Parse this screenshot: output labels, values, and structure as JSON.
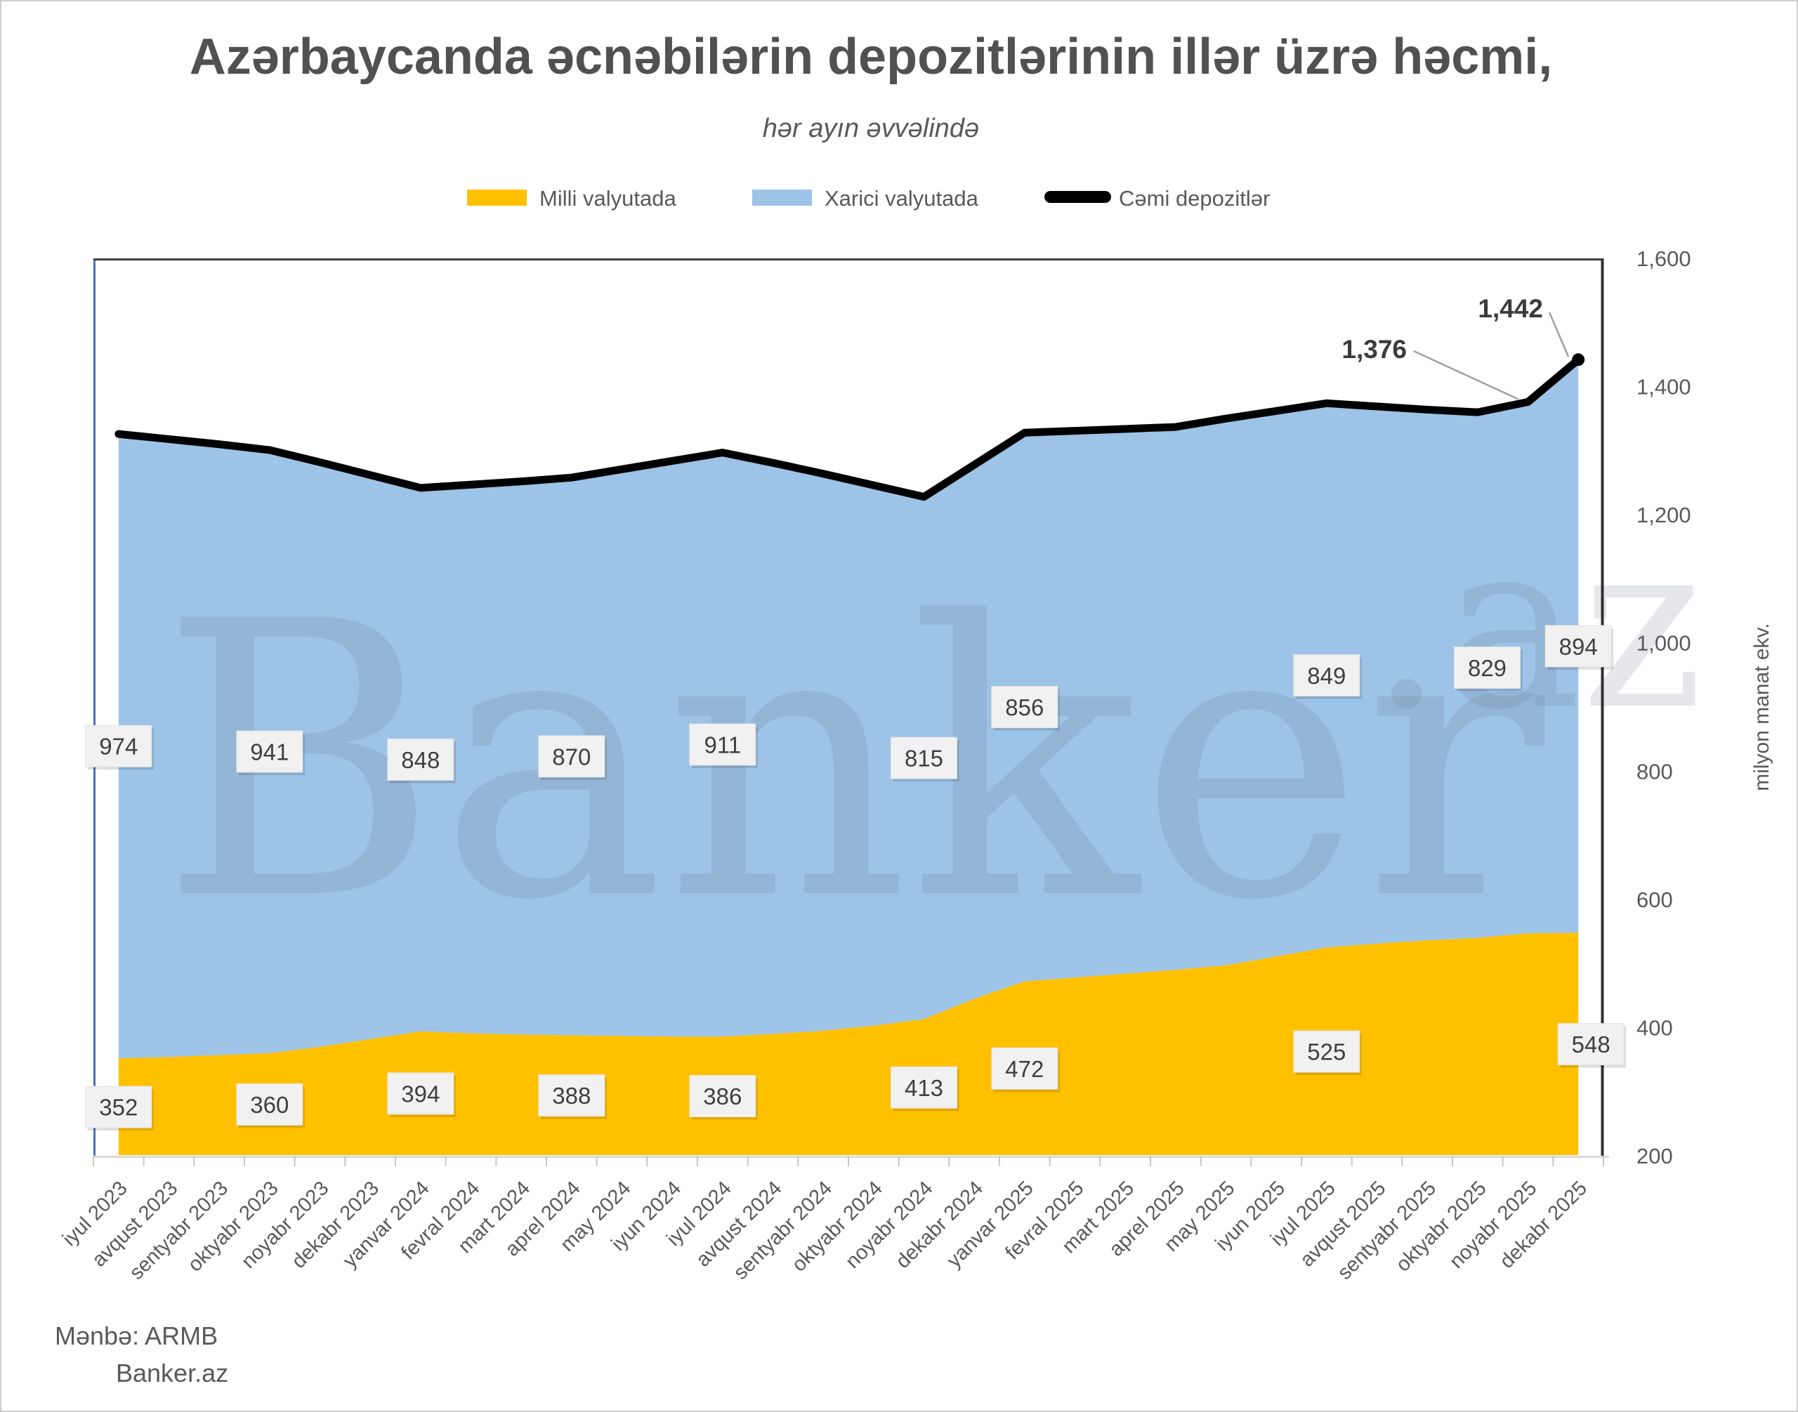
{
  "title": "Azərbaycanda əcnəbilərin depozitlərinin illər üzrə həcmi,",
  "subtitle": "hər ayın əvvəlində",
  "legend": [
    {
      "label": "Milli valyutada",
      "color": "#FFC000",
      "type": "area"
    },
    {
      "label": "Xarici valyutada",
      "color": "#9DC3E6",
      "type": "area"
    },
    {
      "label": "Cəmi depozitlər",
      "color": "#000000",
      "type": "line"
    }
  ],
  "watermark": {
    "main": "Banker",
    "suffix": ".az"
  },
  "source": {
    "line1": "Mənbə: ARMB",
    "line2": "Banker.az"
  },
  "y_axis": {
    "title": "milyon manat ekv.",
    "min": 200,
    "max": 1600,
    "step": 200,
    "tick_labels": [
      "200",
      "400",
      "600",
      "800",
      "1,000",
      "1,200",
      "1,400",
      "1,600"
    ]
  },
  "chart_data": {
    "type": "area",
    "stacked": true,
    "grid": false,
    "legend_position": "top",
    "ylim": [
      200,
      1600
    ],
    "ylabel": "milyon manat ekv.",
    "categories": [
      "iyul 2023",
      "avqust 2023",
      "sentyabr 2023",
      "oktyabr 2023",
      "noyabr 2023",
      "dekabr 2023",
      "yanvar 2024",
      "fevral 2024",
      "mart 2024",
      "aprel 2024",
      "may 2024",
      "iyun 2024",
      "iyul 2024",
      "avqust 2024",
      "sentyabr 2024",
      "oktyabr 2024",
      "noyabr 2024",
      "dekabr 2024",
      "yanvar 2025",
      "fevral 2025",
      "mart 2025",
      "aprel 2025",
      "may 2025",
      "iyun 2025",
      "iyul 2025",
      "avqust 2025",
      "sentyabr 2025",
      "oktyabr 2025",
      "noyabr 2025",
      "dekabr 2025"
    ],
    "series": [
      {
        "name": "Milli valyutada",
        "color": "#FFC000",
        "kind": "area",
        "values": [
          352,
          354,
          357,
          360,
          370,
          382,
          394,
          391,
          389,
          388,
          387,
          386,
          386,
          390,
          395,
          403,
          413,
          445,
          472,
          478,
          484,
          490,
          497,
          511,
          525,
          531,
          536,
          540,
          547,
          548
        ]
      },
      {
        "name": "Xarici valyutada",
        "color": "#9DC3E6",
        "kind": "area",
        "values": [
          974,
          964,
          953,
          941,
          912,
          880,
          848,
          856,
          863,
          870,
          884,
          898,
          911,
          891,
          869,
          843,
          815,
          833,
          856,
          853,
          850,
          847,
          853,
          851,
          849,
          838,
          828,
          820,
          829,
          894
        ]
      },
      {
        "name": "Cəmi depozitlər",
        "color": "#000000",
        "kind": "line",
        "values": [
          1326,
          1318,
          1310,
          1301,
          1282,
          1262,
          1242,
          1247,
          1252,
          1258,
          1271,
          1284,
          1297,
          1281,
          1264,
          1246,
          1228,
          1278,
          1328,
          1331,
          1334,
          1337,
          1350,
          1362,
          1374,
          1369,
          1364,
          1360,
          1376,
          1442
        ]
      }
    ],
    "data_labels": {
      "milli": [
        {
          "i": 0,
          "text": "352"
        },
        {
          "i": 3,
          "text": "360"
        },
        {
          "i": 6,
          "text": "394"
        },
        {
          "i": 9,
          "text": "388"
        },
        {
          "i": 12,
          "text": "386"
        },
        {
          "i": 16,
          "text": "413"
        },
        {
          "i": 18,
          "text": "472"
        },
        {
          "i": 24,
          "text": "525"
        },
        {
          "i": 29,
          "text": "548",
          "dx": 18
        }
      ],
      "xarici": [
        {
          "i": 0,
          "text": "974"
        },
        {
          "i": 3,
          "text": "941"
        },
        {
          "i": 6,
          "text": "848"
        },
        {
          "i": 9,
          "text": "870"
        },
        {
          "i": 12,
          "text": "911"
        },
        {
          "i": 16,
          "text": "815"
        },
        {
          "i": 18,
          "text": "856"
        },
        {
          "i": 24,
          "text": "849"
        },
        {
          "i": 28,
          "text": "829",
          "dx": -58
        },
        {
          "i": 29,
          "text": "894"
        }
      ],
      "total": [
        {
          "i": 28,
          "text": "1,376"
        },
        {
          "i": 29,
          "text": "1,442"
        }
      ]
    }
  }
}
